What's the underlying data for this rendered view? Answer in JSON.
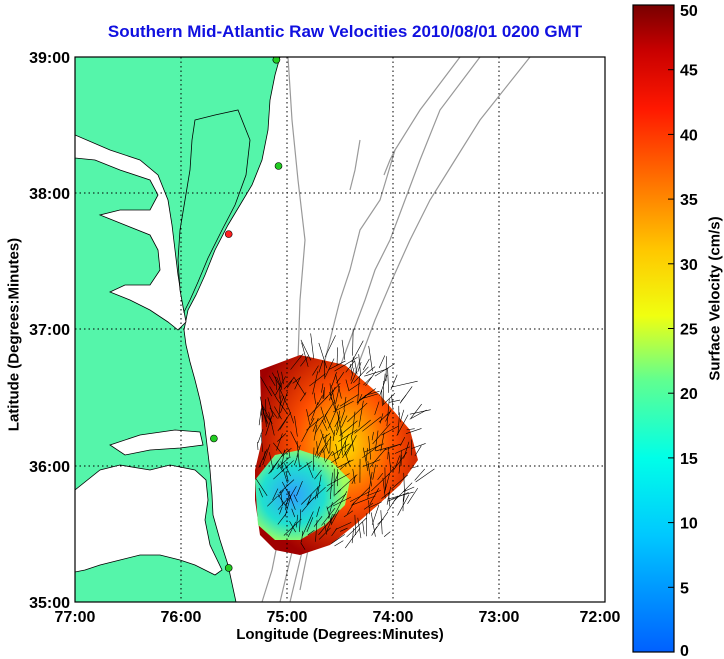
{
  "title": "Southern Mid-Atlantic Raw Velocities 2010/08/01 0200 GMT",
  "xlabel": "Longitude (Degrees:Minutes)",
  "ylabel": "Latitude (Degrees:Minutes)",
  "colorbar": {
    "label": "Surface Velocity (cm/s)",
    "min": 0,
    "max": 50,
    "ticks": [
      "0",
      "5",
      "10",
      "15",
      "20",
      "25",
      "30",
      "35",
      "40",
      "45",
      "50"
    ]
  },
  "map": {
    "lon_range": [
      -77,
      -72
    ],
    "lat_range": [
      35,
      39
    ],
    "x_ticks": [
      "77:00",
      "76:00",
      "75:00",
      "74:00",
      "73:00",
      "72:00"
    ],
    "y_ticks": [
      "35:00",
      "36:00",
      "37:00",
      "38:00",
      "39:00"
    ],
    "grid": "dotted",
    "land_color": "#55f5aa",
    "coastline_color": "#000000",
    "bathymetry_color": "#999999",
    "stations": [
      {
        "lon": -75.1,
        "lat": 38.98,
        "color": "#ff2020"
      },
      {
        "lon": -75.1,
        "lat": 38.98,
        "color": "#22cc22"
      },
      {
        "lon": -75.08,
        "lat": 38.2,
        "color": "#22cc22"
      },
      {
        "lon": -75.55,
        "lat": 37.7,
        "color": "#ff2020"
      },
      {
        "lon": -75.69,
        "lat": 36.2,
        "color": "#22cc22"
      },
      {
        "lon": -75.55,
        "lat": 35.25,
        "color": "#22cc22"
      }
    ]
  }
}
